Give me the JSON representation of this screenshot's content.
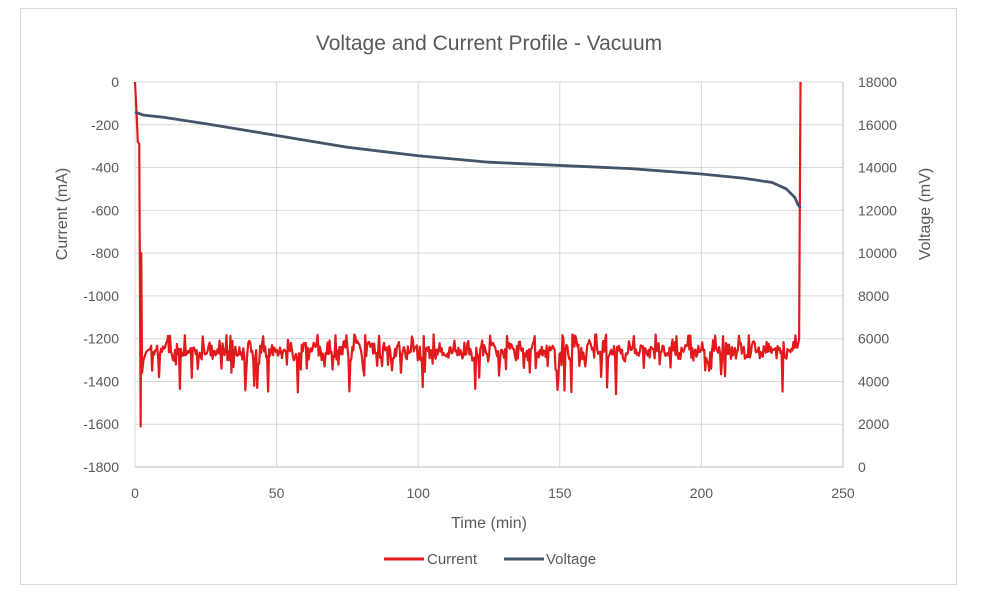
{
  "chart_data": {
    "type": "line",
    "title": "Voltage and Current Profile - Vacuum",
    "xlabel": "Time (min)",
    "ylabel_left": "Current (mA)",
    "ylabel_right": "Voltage (mV)",
    "xlim": [
      0,
      250
    ],
    "ylim_left": [
      -1800,
      0
    ],
    "ylim_right": [
      0,
      18000
    ],
    "x_ticks": [
      "0",
      "50",
      "100",
      "150",
      "200",
      "250"
    ],
    "y_left_ticks": [
      "0",
      "-200",
      "-400",
      "-600",
      "-800",
      "-1000",
      "-1200",
      "-1400",
      "-1600",
      "-1800"
    ],
    "y_right_ticks": [
      "18000",
      "16000",
      "14000",
      "12000",
      "10000",
      "8000",
      "6000",
      "4000",
      "2000",
      "0"
    ],
    "grid": true,
    "legend_position": "bottom",
    "series": [
      {
        "name": "Current",
        "axis": "left",
        "color": "#e31a1c",
        "points": [
          [
            0,
            0
          ],
          [
            0.5,
            -130
          ],
          [
            1,
            -280
          ],
          [
            1.5,
            -290
          ],
          [
            2,
            -1610
          ],
          [
            2.2,
            -800
          ],
          [
            2.5,
            -1360
          ],
          [
            3,
            -1300
          ],
          [
            4,
            -1260
          ],
          [
            5,
            -1250
          ],
          [
            234,
            -1260
          ],
          [
            234.5,
            -1200
          ],
          [
            235,
            0
          ]
        ],
        "noise": {
          "t_start": 5,
          "t_end": 234,
          "mean": -1255,
          "amplitude": 70,
          "min": -1460,
          "max": -1190
        }
      },
      {
        "name": "Voltage",
        "axis": "right",
        "color": "#44546a",
        "points": [
          [
            0,
            16600
          ],
          [
            1,
            16550
          ],
          [
            2,
            16500
          ],
          [
            3,
            16450
          ],
          [
            10,
            16350
          ],
          [
            25,
            16050
          ],
          [
            50,
            15500
          ],
          [
            75,
            14950
          ],
          [
            100,
            14550
          ],
          [
            125,
            14250
          ],
          [
            150,
            14100
          ],
          [
            175,
            13950
          ],
          [
            200,
            13700
          ],
          [
            215,
            13500
          ],
          [
            225,
            13300
          ],
          [
            230,
            13000
          ],
          [
            233,
            12600
          ],
          [
            234,
            12300
          ],
          [
            235,
            12100
          ]
        ]
      }
    ]
  }
}
